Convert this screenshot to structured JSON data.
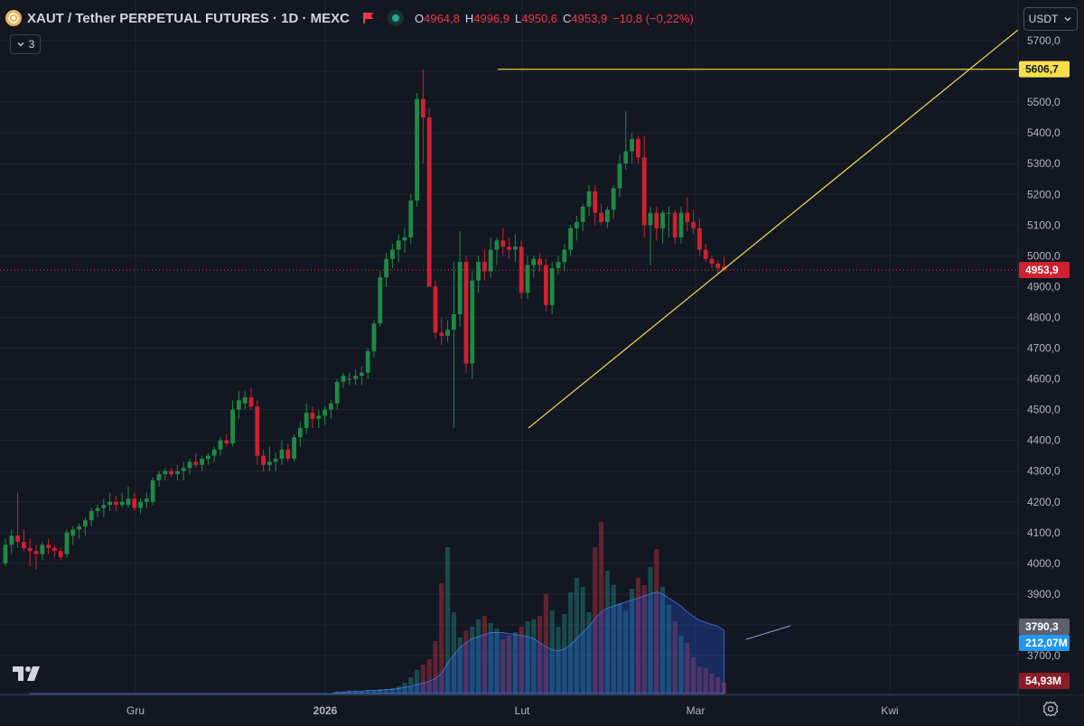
{
  "header": {
    "title": "XAUT / Tether PERPETUAL FUTURES · 1D · MEXC",
    "ohlc": [
      {
        "key": "O",
        "value": "4964,8"
      },
      {
        "key": "H",
        "value": "4996,9"
      },
      {
        "key": "L",
        "value": "4950,6"
      },
      {
        "key": "C",
        "value": "4953,9"
      }
    ],
    "change": "−10,8 (−0,22%)",
    "indicator_count": "3"
  },
  "currency": "USDT",
  "colors": {
    "background": "#131722",
    "up": "#26a69a",
    "down": "#f23645",
    "candle_up": "#1e8a45",
    "candle_down": "#d1202e",
    "trendline": "#f5e04a",
    "grid": "#1f2430",
    "volume_ma": "#2962ff"
  },
  "price_axis": {
    "ticks": [
      "5700,0",
      "5600,0",
      "5500,0",
      "5400,0",
      "5300,0",
      "5200,0",
      "5100,0",
      "5000,0",
      "4900,0",
      "4800,0",
      "4700,0",
      "4600,0",
      "4500,0",
      "4400,0",
      "4300,0",
      "4200,0",
      "4100,0",
      "4000,0",
      "3900,0",
      "3800,0",
      "3700,0"
    ],
    "labels": {
      "horizontal_line": "5606,7",
      "last_price": "4953,9",
      "volume_ma_value": "3790,3",
      "volume_ma_value_2": "212,07M",
      "volume_last": "54,93M"
    }
  },
  "time_axis": {
    "labels": [
      "Gru",
      "2026",
      "Lut",
      "Mar",
      "Kwi"
    ]
  },
  "chart_data": {
    "type": "candlestick",
    "ylim": [
      3650,
      5750
    ],
    "candles": [
      [
        4000,
        4080,
        3990,
        4060
      ],
      [
        4060,
        4110,
        4030,
        4090
      ],
      [
        4090,
        4230,
        4050,
        4070
      ],
      [
        4070,
        4110,
        4040,
        4050
      ],
      [
        4050,
        4080,
        3990,
        4040
      ],
      [
        4040,
        4060,
        3980,
        4030
      ],
      [
        4030,
        4070,
        4010,
        4060
      ],
      [
        4060,
        4080,
        4030,
        4050
      ],
      [
        4050,
        4060,
        4020,
        4040
      ],
      [
        4040,
        4050,
        4010,
        4020
      ],
      [
        4030,
        4110,
        4020,
        4100
      ],
      [
        4090,
        4120,
        4060,
        4110
      ],
      [
        4110,
        4130,
        4080,
        4120
      ],
      [
        4120,
        4150,
        4090,
        4140
      ],
      [
        4140,
        4180,
        4120,
        4170
      ],
      [
        4170,
        4190,
        4150,
        4180
      ],
      [
        4180,
        4210,
        4150,
        4190
      ],
      [
        4190,
        4230,
        4170,
        4200
      ],
      [
        4200,
        4220,
        4170,
        4190
      ],
      [
        4190,
        4230,
        4180,
        4200
      ],
      [
        4190,
        4250,
        4180,
        4210
      ],
      [
        4210,
        4230,
        4170,
        4180
      ],
      [
        4180,
        4210,
        4160,
        4200
      ],
      [
        4200,
        4230,
        4180,
        4210
      ],
      [
        4200,
        4280,
        4190,
        4270
      ],
      [
        4270,
        4300,
        4250,
        4290
      ],
      [
        4290,
        4310,
        4270,
        4300
      ],
      [
        4300,
        4310,
        4280,
        4290
      ],
      [
        4290,
        4320,
        4270,
        4300
      ],
      [
        4300,
        4330,
        4270,
        4310
      ],
      [
        4310,
        4340,
        4290,
        4330
      ],
      [
        4330,
        4360,
        4310,
        4320
      ],
      [
        4320,
        4350,
        4300,
        4340
      ],
      [
        4340,
        4360,
        4320,
        4350
      ],
      [
        4350,
        4380,
        4330,
        4370
      ],
      [
        4370,
        4410,
        4350,
        4400
      ],
      [
        4400,
        4420,
        4380,
        4390
      ],
      [
        4390,
        4530,
        4380,
        4500
      ],
      [
        4500,
        4560,
        4470,
        4530
      ],
      [
        4520,
        4560,
        4500,
        4540
      ],
      [
        4540,
        4570,
        4500,
        4510
      ],
      [
        4510,
        4530,
        4320,
        4350
      ],
      [
        4350,
        4370,
        4300,
        4320
      ],
      [
        4320,
        4380,
        4300,
        4330
      ],
      [
        4330,
        4360,
        4300,
        4340
      ],
      [
        4340,
        4400,
        4320,
        4370
      ],
      [
        4370,
        4390,
        4330,
        4340
      ],
      [
        4340,
        4420,
        4330,
        4410
      ],
      [
        4410,
        4460,
        4380,
        4440
      ],
      [
        4440,
        4520,
        4420,
        4490
      ],
      [
        4490,
        4510,
        4440,
        4470
      ],
      [
        4470,
        4500,
        4440,
        4480
      ],
      [
        4480,
        4510,
        4450,
        4500
      ],
      [
        4500,
        4530,
        4470,
        4520
      ],
      [
        4520,
        4600,
        4500,
        4590
      ],
      [
        4590,
        4620,
        4570,
        4610
      ],
      [
        4600,
        4620,
        4580,
        4600
      ],
      [
        4600,
        4630,
        4580,
        4610
      ],
      [
        4610,
        4640,
        4580,
        4620
      ],
      [
        4620,
        4700,
        4600,
        4690
      ],
      [
        4690,
        4790,
        4670,
        4780
      ],
      [
        4780,
        4950,
        4770,
        4930
      ],
      [
        4930,
        5010,
        4900,
        4990
      ],
      [
        4990,
        5040,
        4960,
        5020
      ],
      [
        5020,
        5070,
        4980,
        5050
      ],
      [
        5050,
        5090,
        5010,
        5060
      ],
      [
        5060,
        5200,
        5040,
        5180
      ],
      [
        5180,
        5530,
        5160,
        5510
      ],
      [
        5510,
        5607,
        5300,
        5450
      ],
      [
        5450,
        5480,
        4900,
        4900
      ],
      [
        4900,
        4920,
        4730,
        4750
      ],
      [
        4750,
        4800,
        4710,
        4740
      ],
      [
        4740,
        4790,
        4720,
        4760
      ],
      [
        4760,
        4980,
        4440,
        4810
      ],
      [
        4810,
        5080,
        4770,
        4980
      ],
      [
        4980,
        5000,
        4620,
        4650
      ],
      [
        4650,
        4950,
        4600,
        4920
      ],
      [
        4920,
        5000,
        4880,
        4980
      ],
      [
        4980,
        5020,
        4920,
        4950
      ],
      [
        4950,
        5060,
        4930,
        5020
      ],
      [
        5020,
        5060,
        4970,
        5050
      ],
      [
        5050,
        5090,
        5000,
        5030
      ],
      [
        5030,
        5060,
        4990,
        5020
      ],
      [
        5020,
        5070,
        4980,
        5030
      ],
      [
        5030,
        5050,
        4860,
        4880
      ],
      [
        4880,
        5000,
        4860,
        4970
      ],
      [
        4970,
        5000,
        4930,
        4990
      ],
      [
        4990,
        5010,
        4950,
        4970
      ],
      [
        4970,
        4990,
        4820,
        4840
      ],
      [
        4840,
        4980,
        4810,
        4960
      ],
      [
        4960,
        5000,
        4940,
        4980
      ],
      [
        4980,
        5040,
        4950,
        5020
      ],
      [
        5020,
        5100,
        5000,
        5090
      ],
      [
        5090,
        5130,
        5050,
        5110
      ],
      [
        5110,
        5170,
        5080,
        5160
      ],
      [
        5160,
        5230,
        5130,
        5210
      ],
      [
        5210,
        5230,
        5100,
        5140
      ],
      [
        5140,
        5170,
        5100,
        5110
      ],
      [
        5110,
        5160,
        5090,
        5150
      ],
      [
        5150,
        5230,
        5120,
        5220
      ],
      [
        5220,
        5330,
        5190,
        5300
      ],
      [
        5300,
        5470,
        5280,
        5340
      ],
      [
        5340,
        5400,
        5300,
        5380
      ],
      [
        5380,
        5390,
        5300,
        5320
      ],
      [
        5320,
        5390,
        5060,
        5100
      ],
      [
        5100,
        5160,
        4970,
        5140
      ],
      [
        5140,
        5160,
        5050,
        5090
      ],
      [
        5090,
        5150,
        5040,
        5140
      ],
      [
        5140,
        5160,
        5060,
        5140
      ],
      [
        5140,
        5150,
        5040,
        5060
      ],
      [
        5060,
        5160,
        5040,
        5140
      ],
      [
        5140,
        5190,
        5080,
        5110
      ],
      [
        5110,
        5150,
        5070,
        5090
      ],
      [
        5090,
        5120,
        5000,
        5020
      ],
      [
        5020,
        5040,
        4980,
        4990
      ],
      [
        4990,
        5000,
        4960,
        4975
      ],
      [
        4975,
        4985,
        4940,
        4960
      ],
      [
        4964.8,
        4996.9,
        4950.6,
        4953.9
      ]
    ],
    "volumes": [
      0,
      0,
      0,
      0,
      0,
      0,
      0,
      0,
      0,
      0,
      0,
      0,
      0,
      0,
      0,
      0,
      0,
      0,
      0,
      0,
      0,
      0,
      0,
      0,
      0,
      0,
      0,
      0,
      0,
      0,
      0,
      0,
      0,
      0,
      0,
      0,
      0,
      0,
      0,
      0,
      0,
      0,
      0,
      0,
      0,
      0,
      0,
      0,
      0,
      0,
      2,
      2,
      3,
      3,
      3,
      4,
      4,
      5,
      5,
      6,
      8,
      12,
      18,
      26,
      32,
      38,
      58,
      122,
      162,
      90,
      62,
      70,
      74,
      82,
      86,
      78,
      72,
      60,
      64,
      68,
      74,
      80,
      82,
      86,
      110,
      92,
      74,
      88,
      112,
      128,
      118,
      90,
      162,
      190,
      136,
      120,
      100,
      92,
      116,
      128,
      120,
      140,
      160,
      118,
      98,
      80,
      64,
      56,
      40,
      30,
      28,
      22,
      18,
      12
    ],
    "volume_ma": [
      0,
      0,
      0,
      0,
      0,
      0,
      0,
      0,
      0,
      0,
      0,
      0,
      0,
      0,
      0,
      0,
      0,
      0,
      0,
      0,
      0,
      0,
      0,
      0,
      0,
      0,
      0,
      0,
      0,
      0,
      0,
      0,
      0,
      0,
      0,
      0,
      0,
      0,
      0,
      0,
      0,
      0,
      0,
      0,
      0,
      0,
      0,
      0,
      0,
      0,
      1,
      1,
      2,
      2,
      2,
      3,
      3,
      3,
      4,
      4,
      5,
      6,
      7,
      9,
      10,
      12,
      15,
      20,
      30,
      38,
      45,
      50,
      54,
      56,
      58,
      60,
      60,
      60,
      59,
      58,
      57,
      56,
      54,
      50,
      46,
      43,
      42,
      44,
      48,
      54,
      60,
      66,
      74,
      80,
      84,
      86,
      88,
      90,
      92,
      94,
      96,
      98,
      100,
      98,
      94,
      90,
      86,
      80,
      76,
      72,
      70,
      68,
      66,
      62
    ],
    "trendline_label": "5606,7"
  }
}
